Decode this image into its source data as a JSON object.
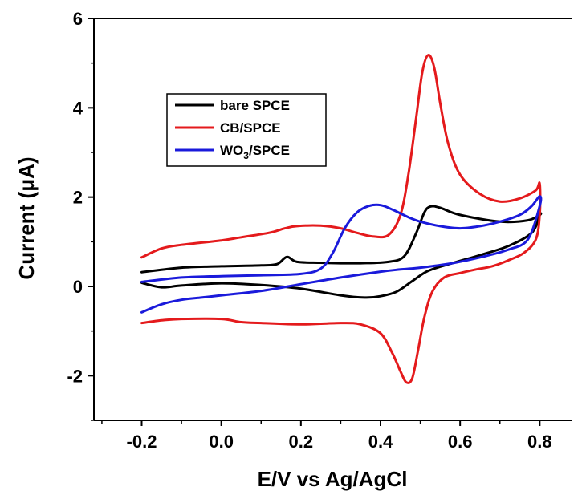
{
  "chart_data": {
    "type": "line",
    "title": "",
    "xlabel": "E/V vs Ag/AgCl",
    "ylabel": "Current (μA)",
    "xlim": [
      -0.32,
      0.88
    ],
    "ylim": [
      -3.0,
      6.0
    ],
    "x_ticks": [
      -0.2,
      0.0,
      0.2,
      0.4,
      0.6,
      0.8
    ],
    "x_tick_labels": [
      "-0.2",
      "0.0",
      "0.2",
      "0.4",
      "0.6",
      "0.8"
    ],
    "y_ticks": [
      -2,
      0,
      2,
      4,
      6
    ],
    "y_tick_labels": [
      "-2",
      "0",
      "2",
      "4",
      "6"
    ],
    "grid": false,
    "legend_position": "upper-left",
    "series": [
      {
        "name": "bare SPCE",
        "color": "#000000",
        "x": [
          -0.2,
          -0.1,
          0.0,
          0.1,
          0.14,
          0.165,
          0.19,
          0.25,
          0.3,
          0.35,
          0.42,
          0.46,
          0.49,
          0.51,
          0.525,
          0.55,
          0.6,
          0.7,
          0.77,
          0.8,
          0.8,
          0.78,
          0.72,
          0.65,
          0.58,
          0.52,
          0.48,
          0.44,
          0.4,
          0.36,
          0.3,
          0.2,
          0.1,
          0.0,
          -0.1,
          -0.15,
          -0.2
        ],
        "y": [
          0.32,
          0.42,
          0.45,
          0.47,
          0.5,
          0.66,
          0.55,
          0.53,
          0.52,
          0.52,
          0.55,
          0.68,
          1.2,
          1.65,
          1.79,
          1.76,
          1.6,
          1.45,
          1.48,
          1.6,
          1.6,
          1.2,
          0.9,
          0.7,
          0.52,
          0.35,
          0.12,
          -0.12,
          -0.22,
          -0.25,
          -0.2,
          -0.05,
          0.03,
          0.07,
          0.02,
          -0.02,
          0.08
        ]
      },
      {
        "name": "CB/SPCE",
        "color": "#e41a1c",
        "x": [
          -0.2,
          -0.15,
          -0.1,
          0.0,
          0.05,
          0.12,
          0.16,
          0.19,
          0.25,
          0.3,
          0.34,
          0.38,
          0.42,
          0.45,
          0.47,
          0.49,
          0.505,
          0.52,
          0.535,
          0.55,
          0.57,
          0.6,
          0.65,
          0.7,
          0.75,
          0.79,
          0.8,
          0.8,
          0.79,
          0.76,
          0.72,
          0.68,
          0.64,
          0.6,
          0.56,
          0.53,
          0.51,
          0.495,
          0.48,
          0.465,
          0.45,
          0.43,
          0.4,
          0.35,
          0.3,
          0.2,
          0.1,
          0.05,
          0.0,
          -0.1,
          -0.15,
          -0.2
        ],
        "y": [
          0.65,
          0.85,
          0.93,
          1.03,
          1.1,
          1.2,
          1.3,
          1.35,
          1.36,
          1.3,
          1.2,
          1.12,
          1.15,
          1.6,
          2.5,
          3.8,
          4.8,
          5.18,
          4.9,
          4.1,
          3.2,
          2.5,
          2.07,
          1.9,
          1.97,
          2.15,
          2.3,
          1.6,
          1.05,
          0.75,
          0.58,
          0.45,
          0.38,
          0.3,
          0.2,
          -0.12,
          -0.7,
          -1.4,
          -2.05,
          -2.15,
          -1.9,
          -1.5,
          -1.05,
          -0.85,
          -0.82,
          -0.85,
          -0.82,
          -0.8,
          -0.73,
          -0.73,
          -0.76,
          -0.82
        ]
      },
      {
        "name": "WO3/SPCE",
        "name_html": "WO<tspan dy='5' font-size='12'>3</tspan><tspan dy='-5'>/SPCE</tspan>",
        "color": "#1a1adb",
        "x": [
          -0.2,
          -0.1,
          0.0,
          0.1,
          0.2,
          0.25,
          0.28,
          0.31,
          0.34,
          0.37,
          0.4,
          0.43,
          0.47,
          0.5,
          0.55,
          0.6,
          0.65,
          0.7,
          0.75,
          0.78,
          0.8,
          0.8,
          0.77,
          0.72,
          0.65,
          0.58,
          0.5,
          0.45,
          0.4,
          0.3,
          0.2,
          0.1,
          0.0,
          -0.05,
          -0.1,
          -0.15,
          -0.2
        ],
        "y": [
          0.1,
          0.2,
          0.23,
          0.25,
          0.28,
          0.4,
          0.75,
          1.3,
          1.65,
          1.8,
          1.82,
          1.72,
          1.55,
          1.45,
          1.35,
          1.3,
          1.35,
          1.45,
          1.6,
          1.8,
          2.02,
          1.8,
          1.05,
          0.82,
          0.65,
          0.52,
          0.42,
          0.38,
          0.33,
          0.2,
          0.05,
          -0.1,
          -0.2,
          -0.25,
          -0.3,
          -0.4,
          -0.58
        ]
      }
    ]
  }
}
